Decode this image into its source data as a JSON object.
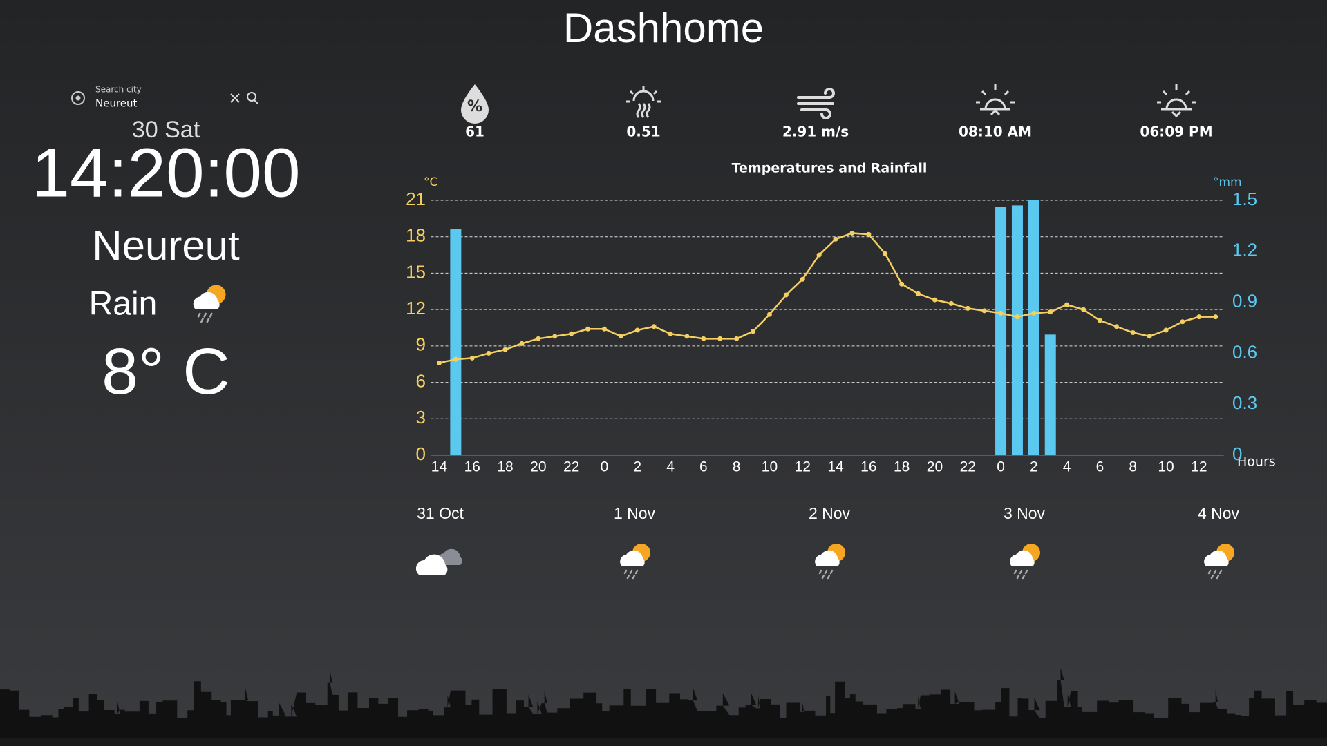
{
  "header": {
    "title": "Dashhome"
  },
  "search": {
    "label": "Search city",
    "value": "Neureut"
  },
  "current": {
    "date": "30 Sat",
    "time": "14:20:00",
    "city": "Neureut",
    "condition": "Rain",
    "temperature": "8° C"
  },
  "stats": [
    "61",
    "0.51",
    "2.91 m/s",
    "08:10 AM",
    "06:09 PM"
  ],
  "chart_data": {
    "type": "combo",
    "title": "Temperatures and Rainfall",
    "y_unit": "°C",
    "y2_unit": "°mm",
    "x_label": "Hours",
    "categories": [
      "14",
      null,
      "16",
      null,
      "18",
      null,
      "20",
      null,
      "22",
      null,
      "0",
      null,
      "2",
      null,
      "4",
      null,
      "6",
      null,
      "8",
      null,
      "10",
      null,
      "12",
      null,
      "14",
      null,
      "16",
      null,
      "18",
      null,
      "20",
      null,
      "22",
      null,
      "0",
      null,
      "2",
      null,
      "4",
      null,
      "6",
      null,
      "8",
      null,
      "10",
      null,
      "12",
      null
    ],
    "ylim": [
      0,
      21
    ],
    "yticks": [
      0,
      3,
      6,
      9,
      12,
      15,
      18,
      21
    ],
    "y2lim": [
      0,
      1.5
    ],
    "y2ticks": [
      0,
      0.3,
      0.6,
      0.9,
      1.2,
      1.5
    ],
    "grid": true,
    "series": [
      {
        "type": "bar",
        "axis": "y2",
        "color": "#5bc8f0",
        "values": [
          0,
          1.33,
          0,
          0,
          0,
          0,
          0,
          0,
          0,
          0,
          0,
          0,
          0,
          0,
          0,
          0,
          0,
          0,
          0,
          0,
          0,
          0,
          0,
          0,
          0,
          0,
          0,
          0,
          0,
          0,
          0,
          0,
          0,
          0,
          1.46,
          1.47,
          1.5,
          0.71,
          0,
          0,
          0,
          0,
          0,
          0,
          0,
          0,
          0,
          0
        ]
      },
      {
        "type": "line",
        "color": "#f5d061",
        "values": [
          7.6,
          7.9,
          8.0,
          8.4,
          8.7,
          9.2,
          9.6,
          9.8,
          10.0,
          10.4,
          10.4,
          9.8,
          10.3,
          10.6,
          10.0,
          9.8,
          9.6,
          9.6,
          9.6,
          10.2,
          11.6,
          13.2,
          14.5,
          16.5,
          17.8,
          18.3,
          18.2,
          16.6,
          14.1,
          13.3,
          12.8,
          12.5,
          12.1,
          11.9,
          11.7,
          11.4,
          11.7,
          11.8,
          12.4,
          12.0,
          11.1,
          10.6,
          10.1,
          9.8,
          10.3,
          11.0,
          11.4,
          11.4
        ]
      }
    ]
  },
  "forecast": [
    "31 Oct",
    "1 Nov",
    "2 Nov",
    "3 Nov",
    "4 Nov"
  ]
}
